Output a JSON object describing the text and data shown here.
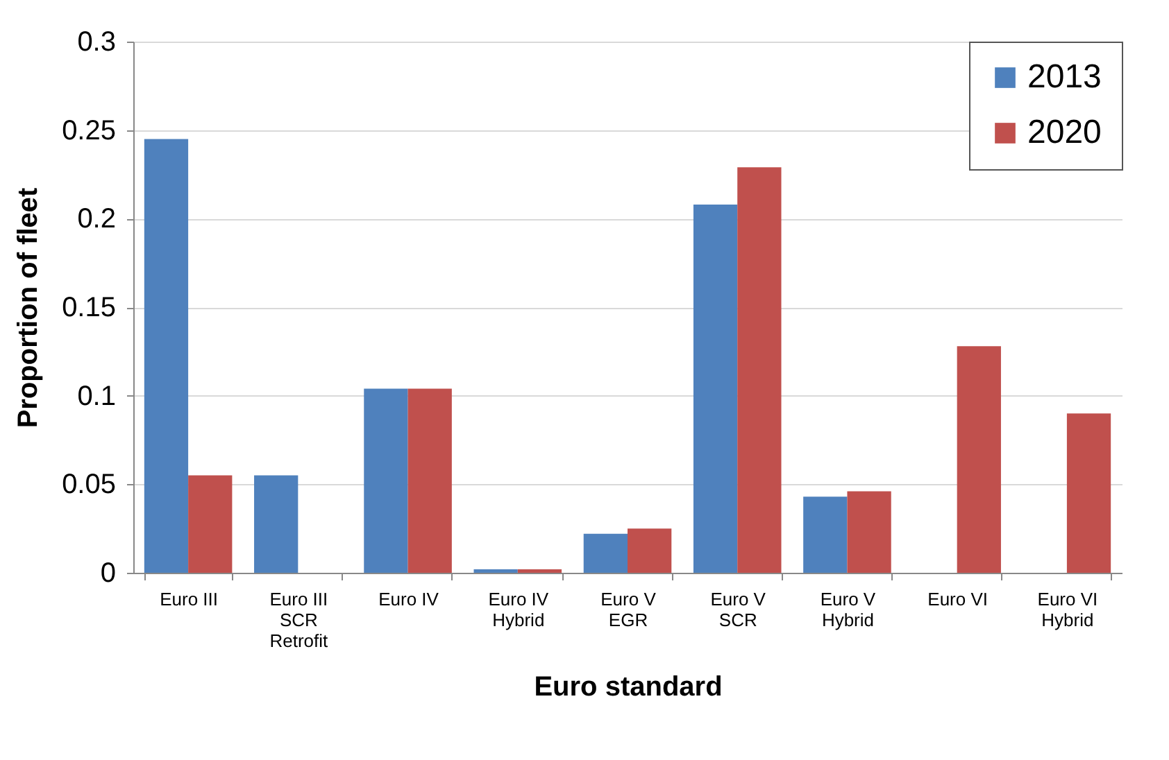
{
  "chart_data": {
    "type": "bar",
    "xlabel": "Euro standard",
    "ylabel": "Proportion of fleet",
    "categories": [
      "Euro III",
      "Euro III SCR Retrofit",
      "Euro IV",
      "Euro IV Hybrid",
      "Euro V EGR",
      "Euro V SCR",
      "Euro V Hybrid",
      "Euro VI",
      "Euro VI Hybrid"
    ],
    "series": [
      {
        "name": "2013",
        "color": "#4f81bd",
        "values": [
          0.245,
          0.055,
          0.104,
          0.002,
          0.022,
          0.208,
          0.043,
          null,
          null
        ]
      },
      {
        "name": "2020",
        "color": "#c0504d",
        "values": [
          0.055,
          null,
          0.104,
          0.002,
          0.025,
          0.229,
          0.046,
          0.128,
          0.09
        ]
      }
    ],
    "ylim": [
      0,
      0.3
    ],
    "yticks": [
      0,
      0.05,
      0.1,
      0.15,
      0.2,
      0.25,
      0.3
    ],
    "grid": "y",
    "legend": "top right"
  }
}
